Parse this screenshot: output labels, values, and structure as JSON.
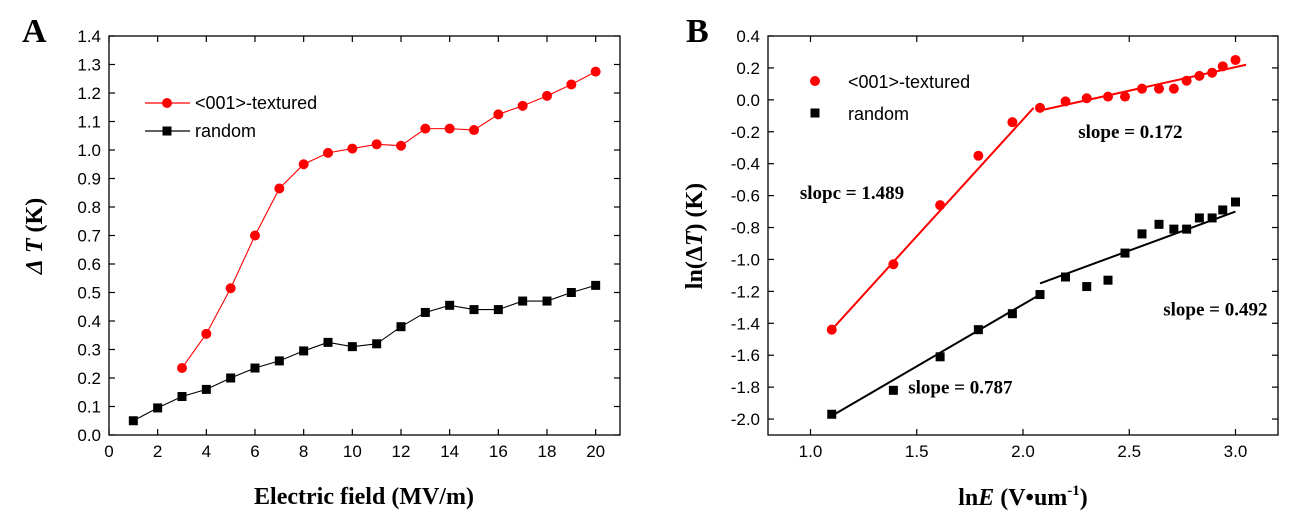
{
  "chart_data": [
    {
      "panel": "A",
      "type": "line",
      "xlabel": "Electric field (MV/m)",
      "ylabel_parts": [
        "Δ",
        " ",
        "T",
        " (K)"
      ],
      "xlim": [
        0,
        21
      ],
      "ylim": [
        0,
        1.4
      ],
      "xticks": [
        0,
        2,
        4,
        6,
        8,
        10,
        12,
        14,
        16,
        18,
        20
      ],
      "yticks": [
        0.0,
        0.1,
        0.2,
        0.3,
        0.4,
        0.5,
        0.6,
        0.7,
        0.8,
        0.9,
        1.0,
        1.1,
        1.2,
        1.3,
        1.4
      ],
      "legend_position": "top-left",
      "series": [
        {
          "name": "<001>-textured",
          "color": "#ff0000",
          "marker": "circle",
          "x": [
            3,
            4,
            5,
            6,
            7,
            8,
            9,
            10,
            11,
            12,
            13,
            14,
            15,
            16,
            17,
            18,
            19,
            20
          ],
          "values": [
            0.235,
            0.355,
            0.515,
            0.7,
            0.865,
            0.95,
            0.99,
            1.005,
            1.02,
            1.015,
            1.075,
            1.075,
            1.07,
            1.125,
            1.155,
            1.19,
            1.23,
            1.275
          ]
        },
        {
          "name": "random",
          "color": "#000000",
          "marker": "square",
          "x": [
            1,
            2,
            3,
            4,
            5,
            6,
            7,
            8,
            9,
            10,
            11,
            12,
            13,
            14,
            15,
            16,
            17,
            18,
            19,
            20
          ],
          "values": [
            0.05,
            0.095,
            0.135,
            0.16,
            0.2,
            0.235,
            0.26,
            0.295,
            0.325,
            0.31,
            0.32,
            0.38,
            0.43,
            0.455,
            0.44,
            0.44,
            0.47,
            0.47,
            0.5,
            0.525
          ]
        }
      ]
    },
    {
      "panel": "B",
      "type": "scatter",
      "xlabel_parts": [
        "ln",
        "E",
        " (V•um",
        "-1",
        ")"
      ],
      "ylabel_parts": [
        "ln(Δ",
        "T",
        ") (K)"
      ],
      "xlim": [
        0.8,
        3.2
      ],
      "ylim": [
        -2.1,
        0.4
      ],
      "xticks": [
        1.0,
        1.5,
        2.0,
        2.5,
        3.0
      ],
      "yticks": [
        -2.0,
        -1.8,
        -1.6,
        -1.4,
        -1.2,
        -1.0,
        -0.8,
        -0.6,
        -0.4,
        -0.2,
        0.0,
        0.2,
        0.4
      ],
      "legend_position": "top-left",
      "series": [
        {
          "name": "<001>-textured",
          "color": "#ff0000",
          "marker": "circle",
          "x": [
            1.1,
            1.39,
            1.61,
            1.79,
            1.95,
            2.08,
            2.2,
            2.3,
            2.4,
            2.48,
            2.56,
            2.64,
            2.71,
            2.77,
            2.83,
            2.89,
            2.94,
            3.0
          ],
          "values": [
            -1.44,
            -1.03,
            -0.66,
            -0.35,
            -0.14,
            -0.05,
            -0.01,
            0.01,
            0.02,
            0.02,
            0.07,
            0.07,
            0.07,
            0.12,
            0.15,
            0.17,
            0.21,
            0.25
          ]
        },
        {
          "name": "random",
          "color": "#000000",
          "marker": "square",
          "x": [
            1.1,
            1.39,
            1.61,
            1.79,
            1.95,
            2.08,
            2.2,
            2.3,
            2.4,
            2.48,
            2.56,
            2.64,
            2.71,
            2.77,
            2.83,
            2.89,
            2.94,
            3.0
          ],
          "values": [
            -1.97,
            -1.82,
            -1.61,
            -1.44,
            -1.34,
            -1.22,
            -1.11,
            -1.17,
            -1.13,
            -0.96,
            -0.84,
            -0.78,
            -0.81,
            -0.81,
            -0.74,
            -0.74,
            -0.69,
            -0.64
          ]
        }
      ],
      "fit_lines": [
        {
          "color": "#ff0000",
          "x": [
            1.1,
            2.05
          ],
          "y": [
            -1.44,
            -0.05
          ]
        },
        {
          "color": "#ff0000",
          "x": [
            2.07,
            3.05
          ],
          "y": [
            -0.07,
            0.22
          ]
        },
        {
          "color": "#000000",
          "x": [
            1.1,
            2.08
          ],
          "y": [
            -1.98,
            -1.22
          ]
        },
        {
          "color": "#000000",
          "x": [
            2.08,
            3.0
          ],
          "y": [
            -1.15,
            -0.7
          ]
        }
      ],
      "annotations": [
        {
          "text": "slopc = 1.489",
          "x": 0.95,
          "y": -0.62
        },
        {
          "text": "slope = 0.172",
          "x": 2.26,
          "y": -0.24
        },
        {
          "text": "slope = 0.492",
          "x": 2.66,
          "y": -1.35
        },
        {
          "text": "slope = 0.787",
          "x": 1.46,
          "y": -1.84
        }
      ]
    }
  ]
}
